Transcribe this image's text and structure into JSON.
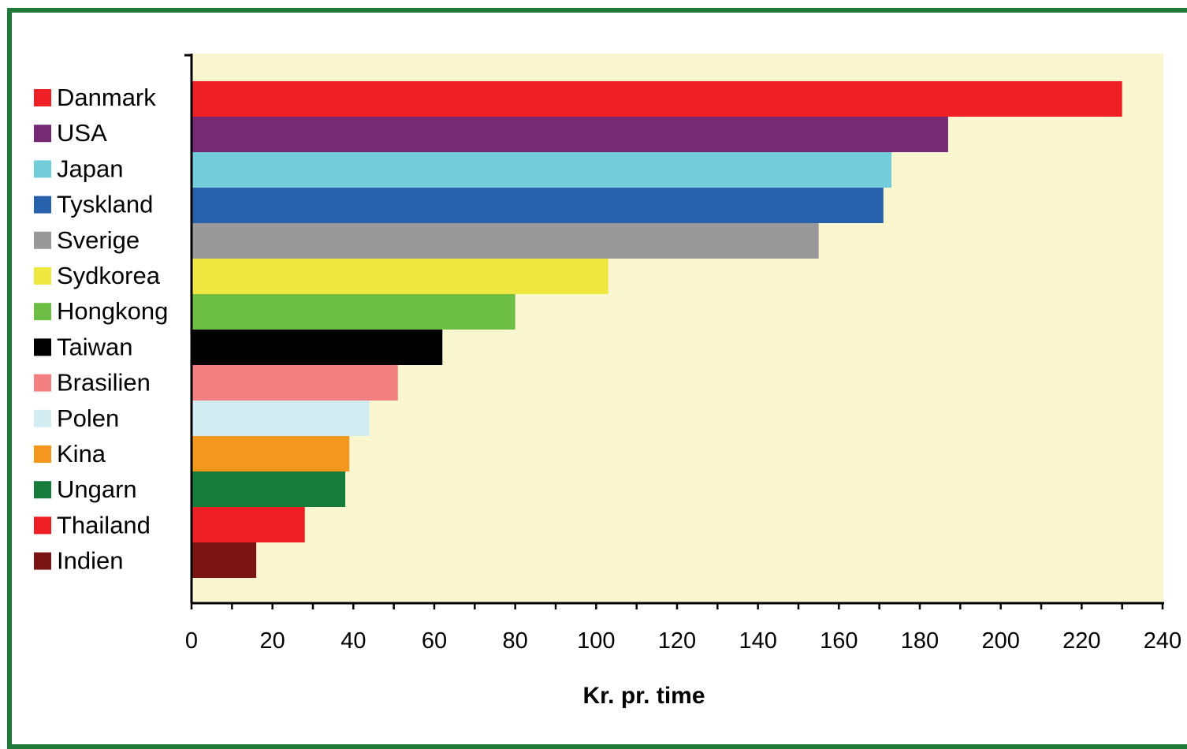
{
  "chart_data": {
    "type": "bar",
    "orientation": "horizontal",
    "categories": [
      "Danmark",
      "USA",
      "Japan",
      "Tyskland",
      "Sverige",
      "Sydkorea",
      "Hongkong",
      "Taiwan",
      "Brasilien",
      "Polen",
      "Kina",
      "Ungarn",
      "Thailand",
      "Indien"
    ],
    "values": [
      230,
      187,
      173,
      171,
      155,
      103,
      80,
      62,
      51,
      44,
      39,
      38,
      28,
      16
    ],
    "colors": [
      "#ee1f25",
      "#762a74",
      "#72ccda",
      "#2962ac",
      "#999999",
      "#f0e840",
      "#6dbe45",
      "#000000",
      "#f38080",
      "#d2ecf2",
      "#f4971f",
      "#157c3c",
      "#ee1f25",
      "#7b1513"
    ],
    "xlabel": "Kr. pr. time",
    "xlim": [
      0,
      240
    ],
    "xticks": [
      "0",
      "20",
      "40",
      "60",
      "80",
      "100",
      "120",
      "140",
      "160",
      "180",
      "200",
      "220",
      "240"
    ],
    "legend_position": "left",
    "plot_background": "#faf6cf",
    "frame_color": "#1f7a3a"
  }
}
